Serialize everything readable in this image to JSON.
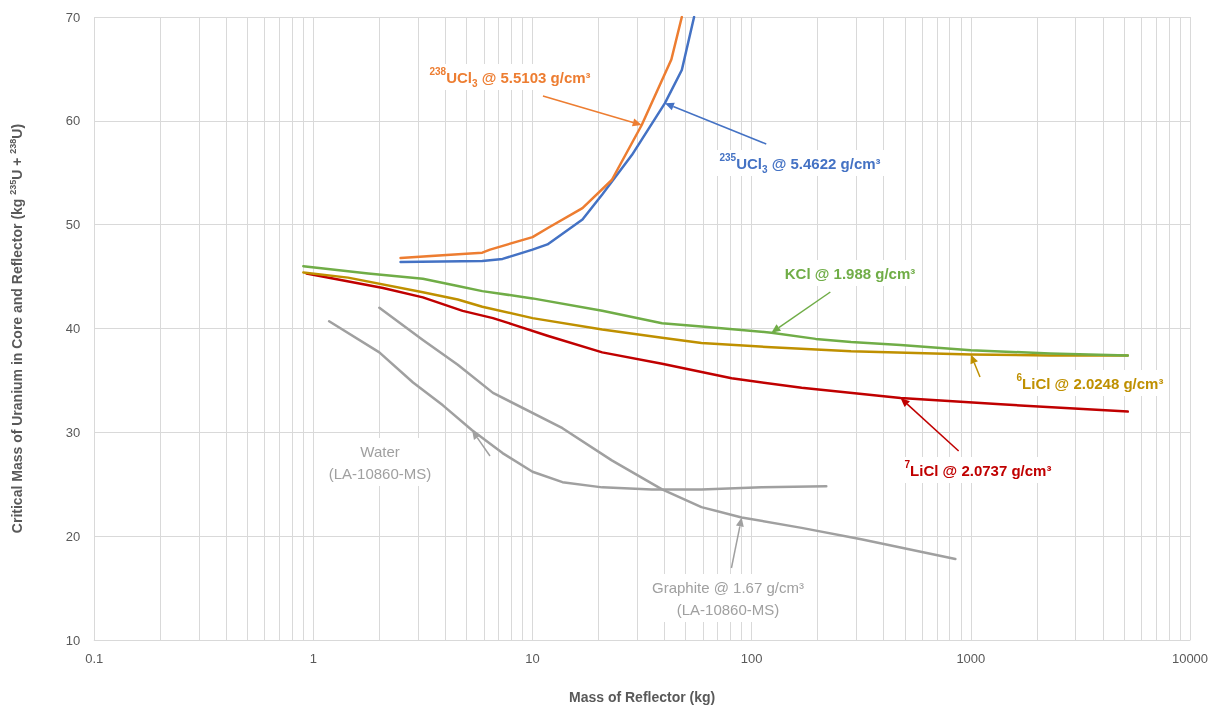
{
  "chart_data": {
    "type": "line",
    "xlabel": "Mass of Reflector (kg)",
    "ylabel": "Critical Mass of Uranium in Core and Reflector (kg $^{235}$U + $^{238}$U)",
    "log": "x",
    "xlim": [
      0.1,
      10000
    ],
    "xticks": [
      0.1,
      1,
      10,
      100,
      1000,
      10000
    ],
    "ylim": [
      10,
      70
    ],
    "yticks": [
      10,
      20,
      30,
      40,
      50,
      60,
      70
    ],
    "grid": true,
    "legend": false,
    "marker": "none",
    "line_style": "solid",
    "series": [
      {
        "name": "$^{238}$UCl$_{3}$ @ 5.5103 g/cm³",
        "color": "#ed7d31",
        "x": [
          2.5,
          5.9,
          6.4,
          10,
          11.8,
          16.9,
          23,
          31.5,
          43,
          48
        ],
        "values": [
          46.8,
          47.3,
          47.6,
          48.8,
          49.7,
          51.6,
          54.3,
          59.6,
          65.9,
          70
        ]
      },
      {
        "name": "$^{235}$UCl$_{3}$ @ 5.4622 g/cm³",
        "color": "#4472c4",
        "x": [
          2.5,
          5.9,
          7.3,
          10,
          11.7,
          16.9,
          20.8,
          28.4,
          40.2,
          48,
          54.6
        ],
        "values": [
          46.4,
          46.5,
          46.7,
          47.6,
          48.1,
          50.5,
          52.9,
          56.7,
          61.7,
          64.9,
          70
        ]
      },
      {
        "name": "KCl @ 1.988 g/cm³",
        "color": "#70ad47",
        "x": [
          0.9,
          1.78,
          3.16,
          4.56,
          5.9,
          10,
          20.8,
          39,
          59,
          123,
          196,
          284,
          478,
          1000,
          2300,
          5200
        ],
        "values": [
          46.0,
          45.3,
          44.8,
          44.1,
          43.6,
          42.9,
          41.7,
          40.5,
          40.2,
          39.6,
          39.0,
          38.7,
          38.4,
          37.9,
          37.6,
          37.4
        ]
      },
      {
        "name": "$^{6}$LiCl @ 2.0248 g/cm³",
        "color": "#bf9000",
        "x": [
          0.9,
          1.44,
          3.16,
          4.56,
          5.9,
          10,
          20.8,
          39,
          59,
          123,
          284,
          1000,
          2300,
          5200
        ],
        "values": [
          45.4,
          44.9,
          43.5,
          42.8,
          42.1,
          41.0,
          39.9,
          39.1,
          38.6,
          38.2,
          37.8,
          37.5,
          37.4,
          37.4
        ]
      },
      {
        "name": "$^{7}$LiCl @ 2.0737 g/cm³",
        "color": "#c00000",
        "x": [
          0.93,
          2.08,
          3.16,
          4.8,
          6.6,
          8.1,
          11.7,
          20.8,
          39,
          81,
          169,
          478,
          1370,
          5200
        ],
        "values": [
          45.3,
          43.9,
          43.0,
          41.7,
          41.0,
          40.4,
          39.3,
          37.7,
          36.6,
          35.2,
          34.3,
          33.3,
          32.7,
          32.0
        ]
      },
      {
        "name": "Water\n(LA-10860-MS)",
        "color": "#a0a0a0",
        "x": [
          1.18,
          2.0,
          2.85,
          3.9,
          5.3,
          7.3,
          10,
          13.7,
          20.8,
          35,
          59,
          111,
          219
        ],
        "values": [
          40.7,
          37.7,
          34.8,
          32.6,
          30.2,
          28.0,
          26.2,
          25.2,
          24.7,
          24.5,
          24.5,
          24.7,
          24.8
        ]
      },
      {
        "name": "Graphite @ 1.67 g/cm³\n(LA-10860-MS)",
        "color": "#a0a0a0",
        "x": [
          2.0,
          3.16,
          4.56,
          6.6,
          13.7,
          23,
          39,
          59,
          90,
          169,
          316,
          850
        ],
        "values": [
          42.0,
          38.9,
          36.5,
          33.8,
          30.4,
          27.3,
          24.5,
          22.8,
          21.8,
          20.8,
          19.7,
          17.8
        ]
      }
    ]
  }
}
